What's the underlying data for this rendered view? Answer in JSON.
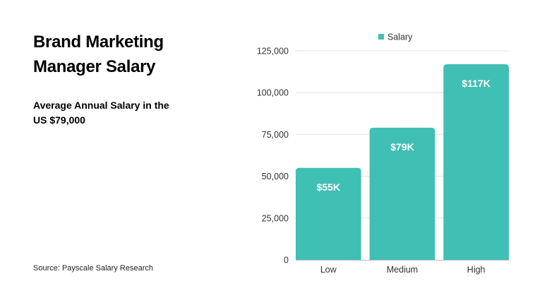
{
  "header": {
    "title": "Brand Marketing Manager Salary",
    "subtitle": "Average Annual Salary in the US $79,000",
    "source": "Source: Payscale Salary Research"
  },
  "chart_data": {
    "type": "bar",
    "categories": [
      "Low",
      "Medium",
      "High"
    ],
    "series": [
      {
        "name": "Salary",
        "values": [
          55000,
          79000,
          117000
        ],
        "color": "#40BFB5"
      }
    ],
    "data_labels": [
      "$55K",
      "$79K",
      "$117K"
    ],
    "yticks": [
      0,
      25000,
      50000,
      75000,
      100000,
      125000
    ],
    "ytick_labels": [
      "0",
      "25,000",
      "50,000",
      "75,000",
      "100,000",
      "125,000"
    ],
    "ylim": [
      0,
      125000
    ],
    "grid": true,
    "legend": "top"
  }
}
